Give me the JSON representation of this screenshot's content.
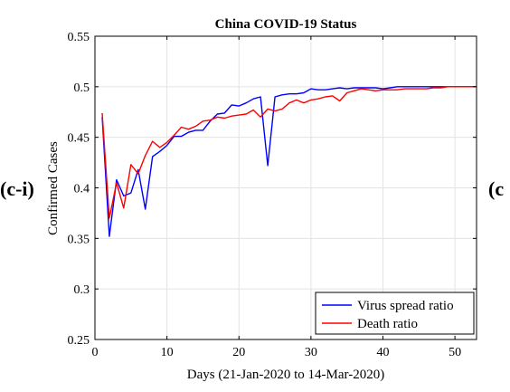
{
  "panel_labels": {
    "left": "(c-i)",
    "right": "(c"
  },
  "chart_data": {
    "type": "line",
    "title": "China COVID-19 Status",
    "xlabel": "Days (21-Jan-2020 to 14-Mar-2020)",
    "ylabel": "Confirmed Cases",
    "xlim": [
      0,
      53
    ],
    "ylim": [
      0.25,
      0.55
    ],
    "xticks": [
      0,
      10,
      20,
      30,
      40,
      50
    ],
    "yticks": [
      0.25,
      0.3,
      0.35,
      0.4,
      0.45,
      0.5,
      0.55
    ],
    "xtick_labels": [
      "0",
      "10",
      "20",
      "30",
      "40",
      "50"
    ],
    "ytick_labels": [
      "0.25",
      "0.3",
      "0.35",
      "0.4",
      "0.45",
      "0.5",
      "0.55"
    ],
    "grid": true,
    "legend_position": "bottom-right",
    "series": [
      {
        "name": "Virus spread ratio",
        "color": "#0000ff",
        "x": [
          1,
          2,
          3,
          4,
          5,
          6,
          7,
          8,
          9,
          10,
          11,
          12,
          13,
          14,
          15,
          16,
          17,
          18,
          19,
          20,
          21,
          22,
          23,
          24,
          25,
          26,
          27,
          28,
          29,
          30,
          31,
          32,
          33,
          34,
          35,
          36,
          37,
          38,
          39,
          40,
          41,
          42,
          43,
          44,
          45,
          46,
          47,
          48,
          49,
          50,
          51,
          52,
          53
        ],
        "y": [
          0.47,
          0.352,
          0.408,
          0.392,
          0.395,
          0.418,
          0.379,
          0.431,
          0.436,
          0.442,
          0.451,
          0.451,
          0.455,
          0.457,
          0.457,
          0.466,
          0.473,
          0.474,
          0.482,
          0.481,
          0.484,
          0.488,
          0.49,
          0.422,
          0.49,
          0.492,
          0.493,
          0.493,
          0.494,
          0.498,
          0.497,
          0.497,
          0.498,
          0.499,
          0.498,
          0.499,
          0.499,
          0.499,
          0.499,
          0.498,
          0.499,
          0.5,
          0.5,
          0.5,
          0.5,
          0.5,
          0.5,
          0.5,
          0.5,
          0.5,
          0.5,
          0.5,
          0.5
        ]
      },
      {
        "name": "Death ratio",
        "color": "#ff0000",
        "x": [
          1,
          2,
          3,
          4,
          5,
          6,
          7,
          8,
          9,
          10,
          11,
          12,
          13,
          14,
          15,
          16,
          17,
          18,
          19,
          20,
          21,
          22,
          23,
          24,
          25,
          26,
          27,
          28,
          29,
          30,
          31,
          32,
          33,
          34,
          35,
          36,
          37,
          38,
          39,
          40,
          41,
          42,
          43,
          44,
          45,
          46,
          47,
          48,
          49,
          50,
          51,
          52,
          53
        ],
        "y": [
          0.474,
          0.37,
          0.405,
          0.38,
          0.423,
          0.414,
          0.432,
          0.446,
          0.44,
          0.445,
          0.452,
          0.46,
          0.458,
          0.461,
          0.466,
          0.467,
          0.47,
          0.469,
          0.471,
          0.472,
          0.473,
          0.477,
          0.47,
          0.478,
          0.476,
          0.478,
          0.484,
          0.487,
          0.484,
          0.487,
          0.488,
          0.49,
          0.491,
          0.486,
          0.494,
          0.496,
          0.498,
          0.497,
          0.496,
          0.497,
          0.497,
          0.497,
          0.498,
          0.498,
          0.498,
          0.498,
          0.499,
          0.499,
          0.5,
          0.5,
          0.5,
          0.5,
          0.5
        ]
      }
    ]
  }
}
